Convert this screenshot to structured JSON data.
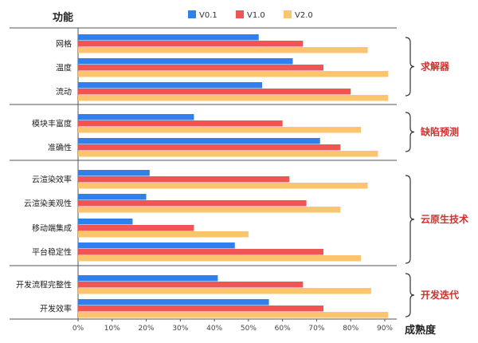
{
  "chart_data": {
    "type": "bar",
    "orientation": "horizontal",
    "ylabel": "功能",
    "xlabel": "成熟度",
    "xlim": [
      0,
      95
    ],
    "x_ticks": [
      "0%",
      "10%",
      "20%",
      "30%",
      "40%",
      "50%",
      "60%",
      "70%",
      "80%",
      "90%"
    ],
    "x_tick_values": [
      0,
      10,
      20,
      30,
      40,
      50,
      60,
      70,
      80,
      90
    ],
    "legend_position": "top-center",
    "grid": false,
    "categories": [
      "网格",
      "温度",
      "流动",
      "模块丰富度",
      "准确性",
      "云渲染效率",
      "云渲染美观性",
      "移动端集成",
      "平台稳定性",
      "开发流程完整性",
      "开发效率"
    ],
    "series": [
      {
        "name": "V0.1",
        "color": "#2f80ed",
        "values": [
          53,
          63,
          54,
          34,
          71,
          21,
          20,
          16,
          46,
          41,
          56
        ]
      },
      {
        "name": "V1.0",
        "color": "#f05454",
        "values": [
          66,
          72,
          80,
          60,
          77,
          62,
          67,
          34,
          72,
          66,
          72
        ]
      },
      {
        "name": "V2.0",
        "color": "#fbc46e",
        "values": [
          85,
          91,
          91,
          83,
          88,
          85,
          77,
          50,
          83,
          86,
          91
        ]
      }
    ],
    "groups": [
      {
        "label": "求解器",
        "members": [
          "网格",
          "温度",
          "流动"
        ]
      },
      {
        "label": "缺陷预测",
        "members": [
          "模块丰富度",
          "准确性"
        ]
      },
      {
        "label": "云原生技术",
        "members": [
          "云渲染效率",
          "云渲染美观性",
          "移动端集成",
          "平台稳定性"
        ]
      },
      {
        "label": "开发迭代",
        "members": [
          "开发流程完整性",
          "开发效率"
        ]
      }
    ],
    "group_label_color": "#d0312d"
  }
}
